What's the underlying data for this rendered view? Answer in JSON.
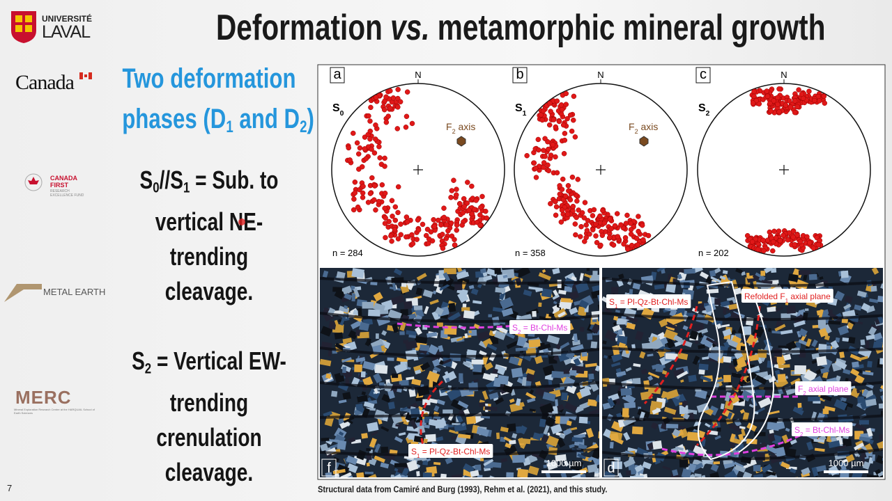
{
  "header": {
    "logo_top": "UNIVERSITÉ",
    "logo_bottom": "LAVAL",
    "title": [
      {
        "t": "Deformation "
      },
      {
        "t": "vs.",
        "italic": true
      },
      {
        "t": " metamorphic mineral growth"
      }
    ]
  },
  "sponsors": {
    "canada": "Canada",
    "cfref_top": "CANADA",
    "cfref_mid": "FIRST",
    "cfref_small": "RESEARCH EXCELLENCE FUND",
    "metal_earth": "METAL EARTH",
    "merc": "MERC",
    "merc_sub": "Mineral Exploration Research Centre at the HARQUAIL School of Earth Sciences"
  },
  "body": {
    "heading": [
      [
        {
          "t": "Two deformation"
        }
      ],
      [
        {
          "t": "phases (D"
        },
        {
          "t": "1",
          "sub": true
        },
        {
          "t": " and D"
        },
        {
          "t": "2",
          "sub": true
        },
        {
          "t": ")"
        }
      ]
    ],
    "paragraph1": [
      [
        {
          "t": "S"
        },
        {
          "t": "0",
          "sub": true
        },
        {
          "t": "//S"
        },
        {
          "t": "1",
          "sub": true
        },
        {
          "t": " = Sub. to"
        }
      ],
      [
        {
          "t": "vertical NE-"
        }
      ],
      [
        {
          "t": "trending"
        }
      ],
      [
        {
          "t": "cleavage."
        }
      ]
    ],
    "paragraph2": [
      [
        {
          "t": "S"
        },
        {
          "t": "2",
          "sub": true
        },
        {
          "t": " = Vertical EW-"
        }
      ],
      [
        {
          "t": "trending"
        }
      ],
      [
        {
          "t": "crenulation"
        }
      ],
      [
        {
          "t": "cleavage."
        }
      ]
    ]
  },
  "figure": {
    "stereonets": [
      {
        "label": "a",
        "north": "N",
        "plane": [
          {
            "t": "S"
          },
          {
            "t": "0",
            "sub": true
          }
        ],
        "count": "n = 284",
        "axis": [
          {
            "t": "F"
          },
          {
            "t": "2",
            "sub": true
          },
          {
            "t": " axis"
          }
        ]
      },
      {
        "label": "b",
        "north": "N",
        "plane": [
          {
            "t": "S"
          },
          {
            "t": "1",
            "sub": true
          }
        ],
        "count": "n = 358",
        "axis": [
          {
            "t": "F"
          },
          {
            "t": "2",
            "sub": true
          },
          {
            "t": " axis"
          }
        ]
      },
      {
        "label": "c",
        "north": "N",
        "plane": [
          {
            "t": "S"
          },
          {
            "t": "2",
            "sub": true
          }
        ],
        "count": "n = 202"
      }
    ],
    "micrographs": [
      {
        "label": "f",
        "scale": "1000 µm",
        "notes": [
          [
            {
              "t": "S"
            },
            {
              "t": "2",
              "sub": true
            },
            {
              "t": " = Bt-Chl-Ms"
            }
          ],
          [
            {
              "t": "S"
            },
            {
              "t": "1",
              "sub": true
            },
            {
              "t": " = Pl-Qz-Bt-Chl-Ms"
            }
          ]
        ]
      },
      {
        "label": "d",
        "scale": "1000 µm",
        "notes": [
          [
            {
              "t": "S"
            },
            {
              "t": "1",
              "sub": true
            },
            {
              "t": " = Pl-Qz-Bt-Chl-Ms"
            }
          ],
          [
            {
              "t": "Refolded F"
            },
            {
              "t": "1",
              "sub": true
            },
            {
              "t": " axial plane"
            }
          ],
          [
            {
              "t": "F"
            },
            {
              "t": "2",
              "sub": true
            },
            {
              "t": " axial plane"
            }
          ],
          [
            {
              "t": "S"
            },
            {
              "t": "2",
              "sub": true
            },
            {
              "t": " = Bt-Chl-Ms"
            }
          ]
        ]
      }
    ],
    "caption": "Structural data from Camiré and Burg (1993), Rehm et al. (2021), and this study."
  },
  "page_number": "7"
}
